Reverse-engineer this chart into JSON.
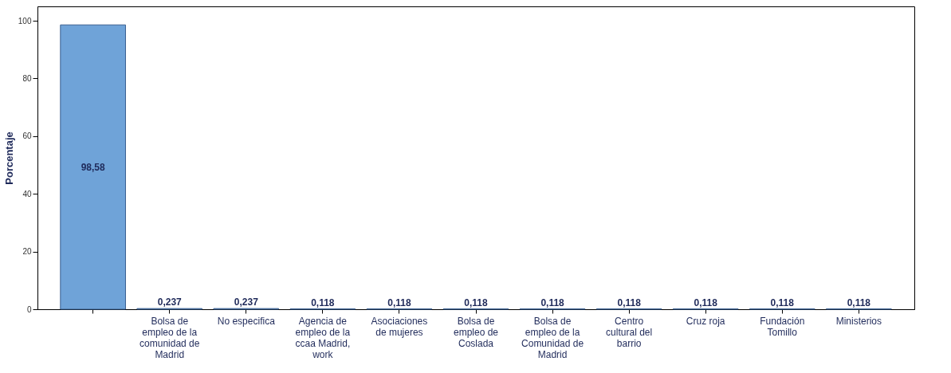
{
  "chart_data": {
    "type": "bar",
    "ylabel": "Porcentaje",
    "categories": [
      null,
      "Bolsa de empleo de la comunidad de Madrid",
      "No especifica",
      "Agencia de empleo de la ccaa Madrid, work",
      "Asociaciones de mujeres",
      "Bolsa de empleo de Coslada",
      "Bolsa de empleo de la Comunidad de Madrid",
      "Centro cultural del barrio",
      "Cruz roja",
      "Fundación Tomillo",
      "Ministerios"
    ],
    "values": [
      98.58,
      0.237,
      0.237,
      0.118,
      0.118,
      0.118,
      0.118,
      0.118,
      0.118,
      0.118,
      0.118
    ],
    "value_labels": [
      "98,58",
      "0,237",
      "0,237",
      "0,118",
      "0,118",
      "0,118",
      "0,118",
      "0,118",
      "0,118",
      "0,118",
      "0,118"
    ],
    "color": "#6fa3d8",
    "ylim": [
      0,
      105
    ],
    "yticks": [
      0,
      20,
      40,
      60,
      80,
      100
    ],
    "grid": false
  }
}
